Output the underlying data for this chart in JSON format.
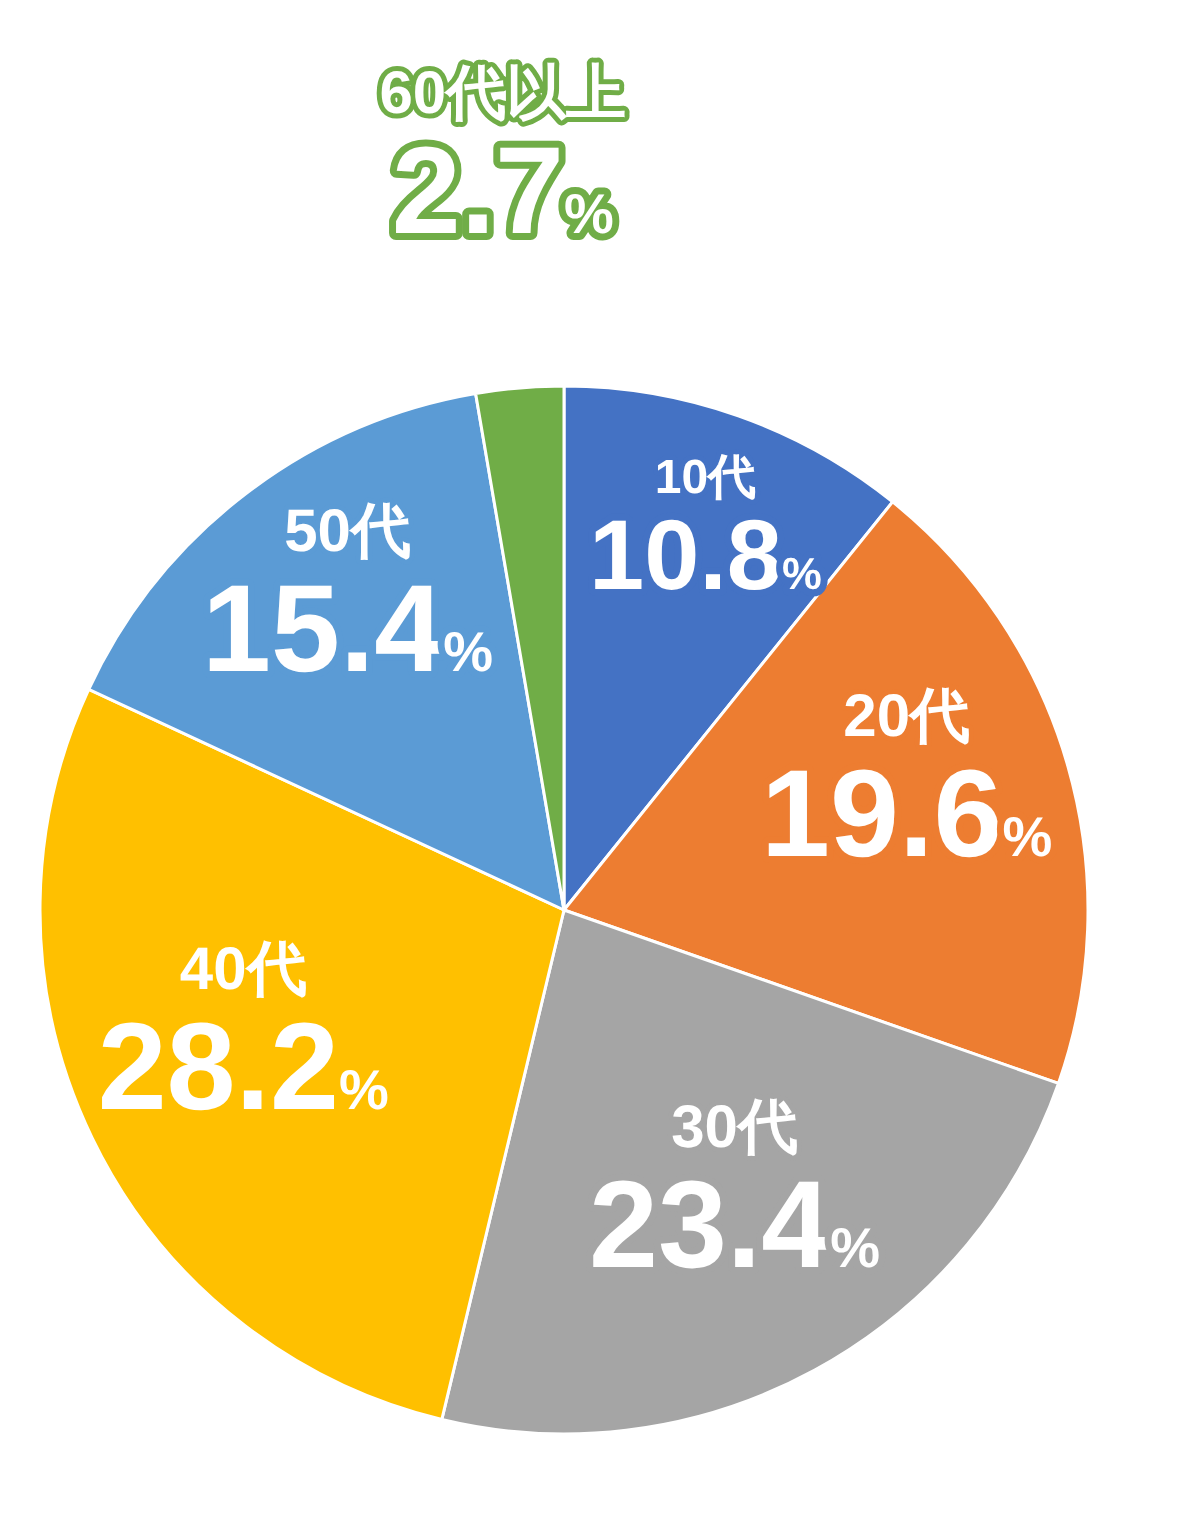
{
  "chart_data": {
    "type": "pie",
    "categories": [
      "10代",
      "20代",
      "30代",
      "40代",
      "50代",
      "60代以上"
    ],
    "values": [
      10.8,
      19.6,
      23.4,
      28.2,
      15.4,
      2.7
    ],
    "colors": [
      "#4472c4",
      "#ed7d31",
      "#a5a5a5",
      "#ffc000",
      "#5b9bd5",
      "#70ad47"
    ],
    "value_labels": [
      "10.8%",
      "19.6%",
      "23.4%",
      "28.2%",
      "15.4%",
      "2.7%"
    ]
  }
}
